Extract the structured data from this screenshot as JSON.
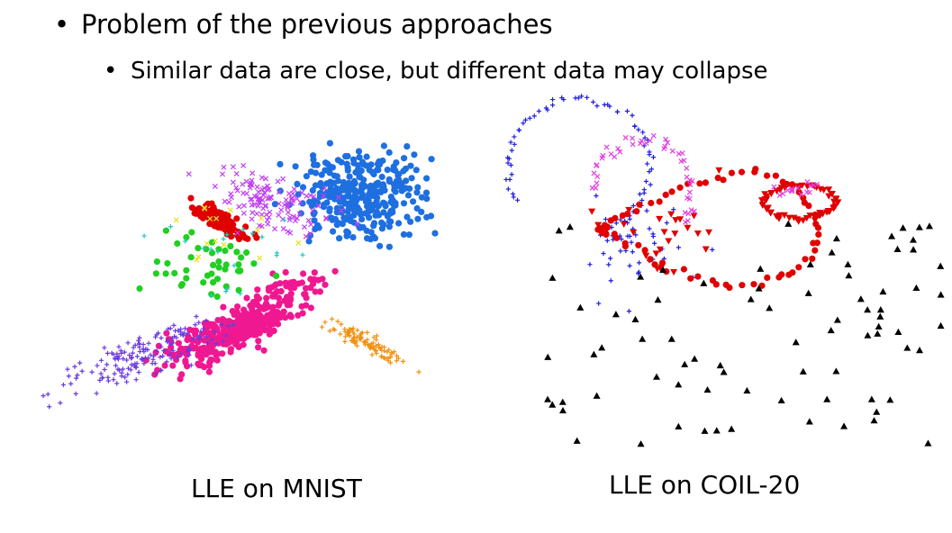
{
  "bullets": [
    {
      "text": "Problem of the previous approaches",
      "level": 1
    },
    {
      "text": "Similar data are close, but different data may collapse",
      "level": 2
    }
  ],
  "figures": [
    {
      "caption": "LLE on MNIST"
    },
    {
      "caption": "LLE on COIL-20"
    }
  ],
  "colors": {
    "mnist": [
      "#1e6fe0",
      "#e00000",
      "#f01890",
      "#6a3be0",
      "#c040f0",
      "#20d020",
      "#f09010",
      "#20c8c0",
      "#e8e020"
    ],
    "coil": [
      "#1f1fe0",
      "#e00000",
      "#e040e0",
      "#000000"
    ]
  }
}
